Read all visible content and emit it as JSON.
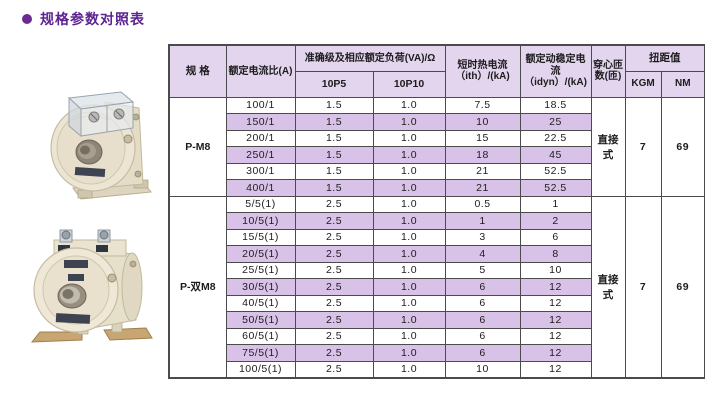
{
  "page": {
    "title": "规格参数对照表"
  },
  "colors": {
    "accent_purple": "#6a2b91",
    "header_bg": "#e4d5ee",
    "row_alt_bg": "#d9c2e8",
    "border": "#4b4b4b",
    "body_cream": "#ece5d3"
  },
  "table": {
    "headers": {
      "spec": "规 格",
      "ratio": "额定电流比(A)",
      "accuracy_group": "准确级及相应额定负荷(VA)/Ω",
      "p5": "10P5",
      "p10": "10P10",
      "ith": "短时热电流\n（ith）/(kA)",
      "idyn": "额定动稳定电流\n（idyn）/(kA)",
      "turns": "穿心匝\n数(匝)",
      "torque_group": "扭距值",
      "kgm": "KGM",
      "nm": "NM"
    },
    "groups": [
      {
        "spec": "P-M8",
        "turns": "直接式",
        "kgm": "7",
        "nm": "69",
        "rows": [
          {
            "ratio": "100/1",
            "p5": "1.5",
            "p10": "1.0",
            "ith": "7.5",
            "idyn": "18.5"
          },
          {
            "ratio": "150/1",
            "p5": "1.5",
            "p10": "1.0",
            "ith": "10",
            "idyn": "25"
          },
          {
            "ratio": "200/1",
            "p5": "1.5",
            "p10": "1.0",
            "ith": "15",
            "idyn": "22.5"
          },
          {
            "ratio": "250/1",
            "p5": "1.5",
            "p10": "1.0",
            "ith": "18",
            "idyn": "45"
          },
          {
            "ratio": "300/1",
            "p5": "1.5",
            "p10": "1.0",
            "ith": "21",
            "idyn": "52.5"
          },
          {
            "ratio": "400/1",
            "p5": "1.5",
            "p10": "1.0",
            "ith": "21",
            "idyn": "52.5"
          }
        ]
      },
      {
        "spec": "P-双M8",
        "turns": "直接式",
        "kgm": "7",
        "nm": "69",
        "rows": [
          {
            "ratio": "5/5(1)",
            "p5": "2.5",
            "p10": "1.0",
            "ith": "0.5",
            "idyn": "1"
          },
          {
            "ratio": "10/5(1)",
            "p5": "2.5",
            "p10": "1.0",
            "ith": "1",
            "idyn": "2"
          },
          {
            "ratio": "15/5(1)",
            "p5": "2.5",
            "p10": "1.0",
            "ith": "3",
            "idyn": "6"
          },
          {
            "ratio": "20/5(1)",
            "p5": "2.5",
            "p10": "1.0",
            "ith": "4",
            "idyn": "8"
          },
          {
            "ratio": "25/5(1)",
            "p5": "2.5",
            "p10": "1.0",
            "ith": "5",
            "idyn": "10"
          },
          {
            "ratio": "30/5(1)",
            "p5": "2.5",
            "p10": "1.0",
            "ith": "6",
            "idyn": "12"
          },
          {
            "ratio": "40/5(1)",
            "p5": "2.5",
            "p10": "1.0",
            "ith": "6",
            "idyn": "12"
          },
          {
            "ratio": "50/5(1)",
            "p5": "2.5",
            "p10": "1.0",
            "ith": "6",
            "idyn": "12"
          },
          {
            "ratio": "60/5(1)",
            "p5": "2.5",
            "p10": "1.0",
            "ith": "6",
            "idyn": "12"
          },
          {
            "ratio": "75/5(1)",
            "p5": "2.5",
            "p10": "1.0",
            "ith": "6",
            "idyn": "12"
          },
          {
            "ratio": "100/5(1)",
            "p5": "2.5",
            "p10": "1.0",
            "ith": "10",
            "idyn": "12"
          }
        ]
      }
    ]
  },
  "photos": [
    {
      "name": "P-M8 产品照片"
    },
    {
      "name": "P-双M8 产品照片"
    }
  ]
}
